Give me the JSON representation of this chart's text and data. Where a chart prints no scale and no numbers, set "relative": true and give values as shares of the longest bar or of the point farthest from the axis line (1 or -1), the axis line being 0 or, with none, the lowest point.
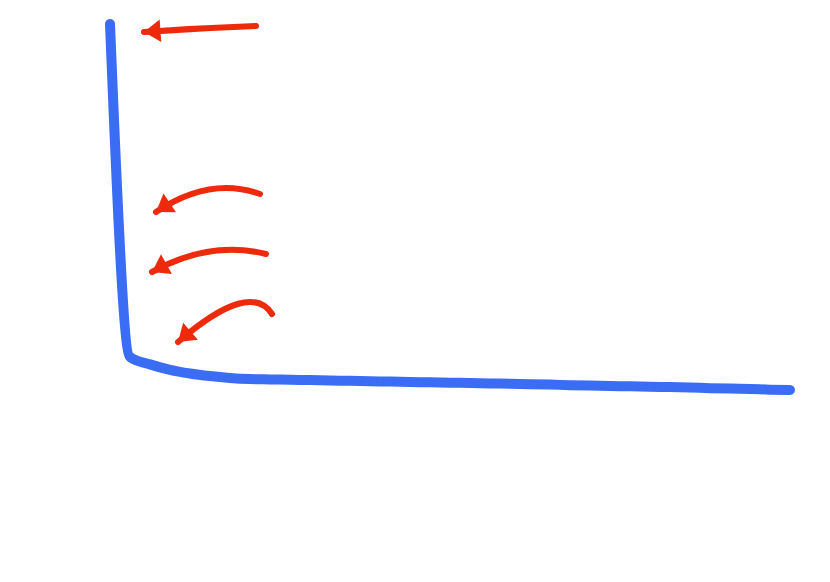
{
  "chart_data": {
    "type": "line",
    "relative": true,
    "categories": [
      null,
      null,
      null,
      null,
      null,
      null,
      null,
      null,
      null,
      null,
      null,
      null,
      null,
      null,
      null,
      null,
      null,
      null,
      null,
      null,
      null,
      null,
      null,
      null,
      null,
      null,
      null,
      null,
      null,
      null,
      null,
      null,
      null,
      null,
      null
    ],
    "series": [
      {
        "color": "#3a6cf4",
        "values": [
          1,
          0.09,
          0.07,
          0.055,
          0.045,
          0.038,
          0.033,
          0.03,
          0.029,
          0.028,
          0.027,
          0.026,
          0.025,
          0.024,
          0.023,
          0.022,
          0.021,
          0.02,
          0.019,
          0.018,
          0.017,
          0.016,
          0.015,
          0.013,
          0.012,
          0.011,
          0.01,
          0.009,
          0.008,
          0.007,
          0.005,
          0.004,
          0.003,
          0.001,
          0
        ]
      }
    ],
    "marker": "none",
    "line_style": "solid"
  }
}
